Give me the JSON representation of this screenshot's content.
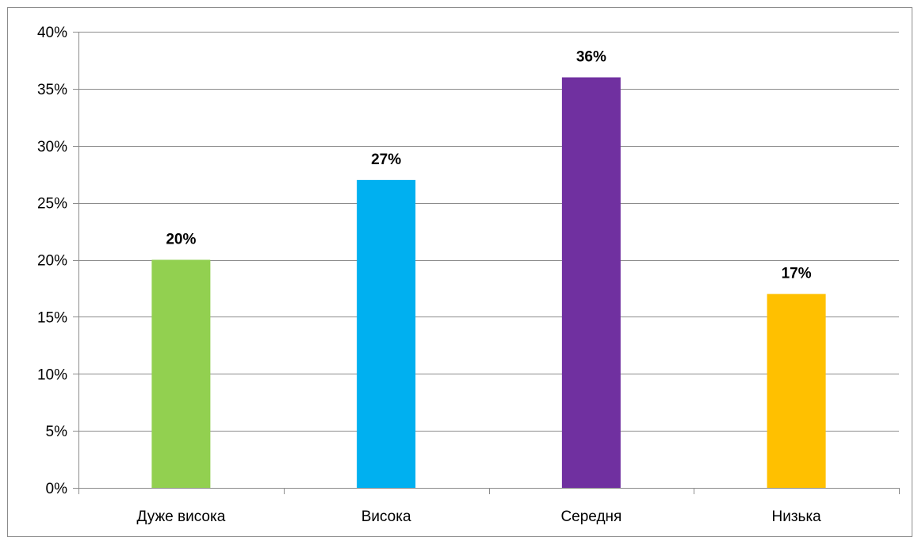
{
  "chart_data": {
    "type": "bar",
    "categories": [
      "Дуже висока",
      "Висока",
      "Середня",
      "Низька"
    ],
    "values": [
      20,
      27,
      36,
      17
    ],
    "data_labels": [
      "20%",
      "27%",
      "36%",
      "17%"
    ],
    "colors": [
      "#92D050",
      "#00B0F0",
      "#7030A0",
      "#FFC000"
    ],
    "ylim": [
      0,
      40
    ],
    "yticks": [
      0,
      5,
      10,
      15,
      20,
      25,
      30,
      35,
      40
    ],
    "ytick_labels": [
      "0%",
      "5%",
      "10%",
      "15%",
      "20%",
      "25%",
      "30%",
      "35%",
      "40%"
    ],
    "grid": true,
    "legend": false,
    "title": "",
    "xlabel": "",
    "ylabel": ""
  }
}
